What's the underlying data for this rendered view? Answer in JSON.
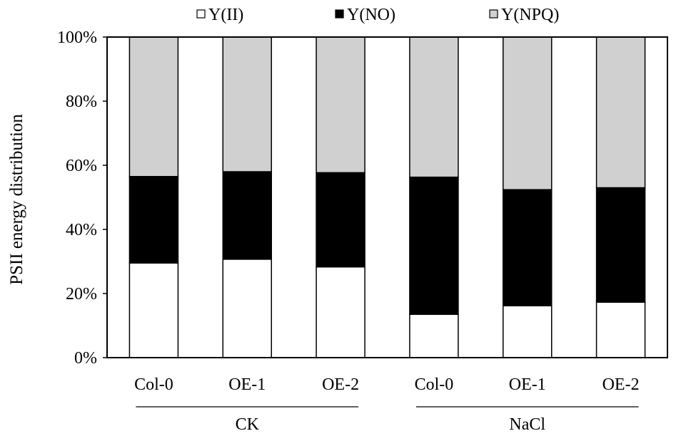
{
  "chart_data": {
    "type": "bar",
    "stacked": true,
    "percent": true,
    "ylabel": "PSII energy distribution",
    "ylim": [
      0,
      100
    ],
    "yticks": [
      "0%",
      "20%",
      "40%",
      "60%",
      "80%",
      "100%"
    ],
    "categories": [
      "Col-0",
      "OE-1",
      "OE-2",
      "Col-0",
      "OE-1",
      "OE-2"
    ],
    "groups": [
      {
        "label": "CK",
        "categories": [
          "Col-0",
          "OE-1",
          "OE-2"
        ]
      },
      {
        "label": "NaCl",
        "categories": [
          "Col-0",
          "OE-1",
          "OE-2"
        ]
      }
    ],
    "series": [
      {
        "name": "Y(II)",
        "color": "#ffffff",
        "values": [
          29.5,
          30.7,
          28.3,
          13.5,
          16.2,
          17.3
        ]
      },
      {
        "name": "Y(NO)",
        "color": "#000000",
        "values": [
          27.0,
          27.3,
          29.4,
          42.8,
          36.2,
          35.7
        ]
      },
      {
        "name": "Y(NPQ)",
        "color": "#d0d0d0",
        "values": [
          43.5,
          42.0,
          42.3,
          43.7,
          47.6,
          47.0
        ]
      }
    ],
    "legend_position": "top",
    "grid": false
  }
}
